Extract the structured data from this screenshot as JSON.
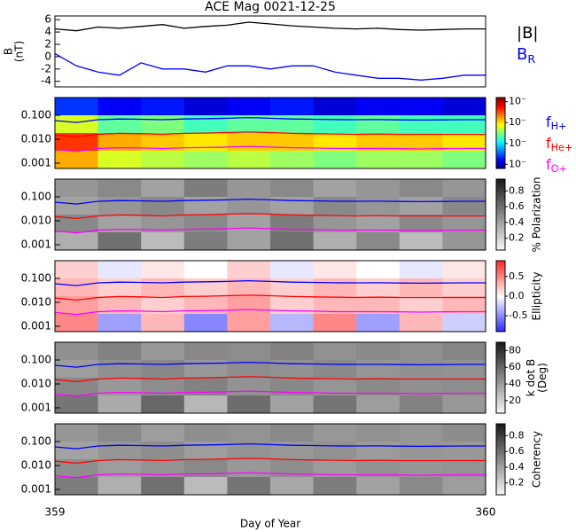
{
  "chart_data": {
    "title": "ACE Mag 0021-12-25",
    "xlabel": "Day of Year",
    "xlim": [
      359,
      360
    ],
    "xticks": [
      359,
      360
    ],
    "x": [
      359.0,
      359.05,
      359.1,
      359.15,
      359.2,
      359.25,
      359.3,
      359.35,
      359.4,
      359.45,
      359.5,
      359.55,
      359.6,
      359.65,
      359.7,
      359.75,
      359.8,
      359.85,
      359.9,
      359.95,
      360.0
    ],
    "gyrofrequencies": {
      "series": [
        {
          "name": "f",
          "subscript": "H+",
          "color": "#0000ff",
          "values": [
            0.06,
            0.05,
            0.065,
            0.07,
            0.068,
            0.065,
            0.07,
            0.072,
            0.075,
            0.08,
            0.075,
            0.07,
            0.068,
            0.066,
            0.065,
            0.066,
            0.064,
            0.063,
            0.064,
            0.065,
            0.065
          ]
        },
        {
          "name": "f",
          "subscript": "He+",
          "color": "#ff0000",
          "values": [
            0.015,
            0.0125,
            0.016,
            0.0175,
            0.017,
            0.016,
            0.0175,
            0.018,
            0.019,
            0.02,
            0.019,
            0.0175,
            0.017,
            0.0165,
            0.016,
            0.0165,
            0.016,
            0.016,
            0.016,
            0.016,
            0.016
          ]
        },
        {
          "name": "f",
          "subscript": "O+",
          "color": "#ff00ff",
          "values": [
            0.0038,
            0.0031,
            0.0041,
            0.0044,
            0.0043,
            0.0041,
            0.0044,
            0.0045,
            0.0047,
            0.005,
            0.0047,
            0.0044,
            0.0043,
            0.0041,
            0.0041,
            0.0041,
            0.004,
            0.0039,
            0.004,
            0.0041,
            0.0041
          ]
        }
      ]
    },
    "panels": [
      {
        "type": "line",
        "ylabel": [
          "B",
          "(nT)"
        ],
        "ylim": [
          -4.9,
          6.6
        ],
        "yticks": [
          6,
          4,
          2,
          0,
          -2,
          -4
        ],
        "series": [
          {
            "name": "|B|",
            "color": "#000000",
            "values": [
              4.5,
              4.2,
              4.8,
              4.6,
              4.9,
              5.2,
              4.6,
              4.9,
              5.1,
              5.6,
              5.3,
              5.0,
              4.8,
              4.6,
              4.5,
              4.6,
              4.4,
              4.3,
              4.4,
              4.5,
              4.5
            ]
          },
          {
            "name": "B",
            "subscript": "R",
            "color": "#0000ff",
            "values": [
              0.5,
              -1.5,
              -2.5,
              -3.0,
              -1.0,
              -2.0,
              -2.0,
              -2.5,
              -1.5,
              -1.5,
              -2.0,
              -1.5,
              -1.5,
              -2.5,
              -3.0,
              -3.5,
              -3.5,
              -3.8,
              -3.5,
              -3.0,
              -3.0
            ]
          }
        ]
      },
      {
        "type": "spectrogram",
        "colormap": "jet",
        "ylim": [
          0.0006,
          0.55
        ],
        "yticks": [
          {
            "value": 0.1,
            "label": "0.100"
          },
          {
            "value": 0.01,
            "label": "0.010"
          },
          {
            "value": 0.001,
            "label": "0.001"
          }
        ],
        "zlim": [
          -4.2,
          -0.8
        ],
        "zticks": [
          {
            "value": -1,
            "label": "10⁻"
          },
          {
            "value": -2,
            "label": "10⁻"
          },
          {
            "value": -3,
            "label": "10⁻"
          },
          {
            "value": -4,
            "label": "10⁻"
          }
        ],
        "z": [
          [
            -3.6,
            -3.8,
            -3.7,
            -3.9,
            -3.8,
            -3.7,
            -3.9,
            -3.8,
            -3.8,
            -3.9
          ],
          [
            -2.2,
            -2.6,
            -2.5,
            -2.7,
            -2.6,
            -2.6,
            -2.7,
            -2.6,
            -2.7,
            -2.7
          ],
          [
            -1.4,
            -1.8,
            -1.9,
            -2.0,
            -1.9,
            -1.9,
            -2.0,
            -1.9,
            -1.9,
            -2.0
          ],
          [
            -1.8,
            -2.2,
            -2.3,
            -2.4,
            -2.3,
            -2.4,
            -2.5,
            -2.4,
            -2.4,
            -2.5
          ]
        ]
      },
      {
        "type": "spectrogram",
        "colormap": "gray",
        "ylim": [
          0.0006,
          0.55
        ],
        "yticks": [
          {
            "value": 0.1,
            "label": "0.100"
          },
          {
            "value": 0.01,
            "label": "0.010"
          },
          {
            "value": 0.001,
            "label": "0.001"
          }
        ],
        "zlim": [
          0.05,
          0.95
        ],
        "zticks": [
          0.8,
          0.6,
          0.4,
          0.2
        ],
        "zlabel": [
          "% Polarization"
        ],
        "z": [
          [
            0.45,
            0.5,
            0.4,
            0.55,
            0.45,
            0.5,
            0.4,
            0.45,
            0.5,
            0.45
          ],
          [
            0.4,
            0.45,
            0.5,
            0.4,
            0.45,
            0.4,
            0.5,
            0.45,
            0.4,
            0.5
          ],
          [
            0.5,
            0.4,
            0.45,
            0.5,
            0.4,
            0.55,
            0.45,
            0.4,
            0.5,
            0.45
          ],
          [
            0.35,
            0.6,
            0.3,
            0.55,
            0.4,
            0.6,
            0.35,
            0.5,
            0.3,
            0.45
          ]
        ]
      },
      {
        "type": "spectrogram",
        "colormap": "bwr",
        "ylim": [
          0.0006,
          0.55
        ],
        "yticks": [
          {
            "value": 0.1,
            "label": "0.100"
          },
          {
            "value": 0.01,
            "label": "0.010"
          },
          {
            "value": 0.001,
            "label": "0.001"
          }
        ],
        "zlim": [
          -0.9,
          0.9
        ],
        "zticks": [
          0.5,
          {
            "value": 0,
            "label": "0.0"
          },
          -0.5
        ],
        "zlabel": [
          "Ellipticity"
        ],
        "z": [
          [
            0.2,
            -0.1,
            0.1,
            0.0,
            0.2,
            -0.1,
            0.1,
            0.0,
            -0.1,
            0.1
          ],
          [
            0.3,
            0.2,
            0.3,
            0.2,
            0.3,
            0.2,
            0.3,
            0.2,
            0.3,
            0.2
          ],
          [
            0.4,
            0.3,
            0.2,
            0.3,
            0.4,
            0.2,
            0.3,
            0.3,
            0.2,
            0.3
          ],
          [
            0.5,
            -0.4,
            0.3,
            -0.5,
            0.4,
            -0.3,
            0.5,
            -0.4,
            0.3,
            -0.2
          ]
        ]
      },
      {
        "type": "spectrogram",
        "colormap": "gray",
        "ylim": [
          0.0006,
          0.55
        ],
        "yticks": [
          {
            "value": 0.1,
            "label": "0.100"
          },
          {
            "value": 0.01,
            "label": "0.010"
          },
          {
            "value": 0.001,
            "label": "0.001"
          }
        ],
        "zlim": [
          5,
          90
        ],
        "zticks": [
          80,
          60,
          40,
          20
        ],
        "zlabel": [
          "k dot B",
          "(Deg)"
        ],
        "z": [
          [
            45,
            50,
            42,
            48,
            46,
            50,
            44,
            47,
            45,
            49
          ],
          [
            40,
            45,
            48,
            42,
            46,
            44,
            47,
            43,
            45,
            44
          ],
          [
            48,
            42,
            46,
            50,
            44,
            48,
            43,
            47,
            45,
            46
          ],
          [
            55,
            35,
            60,
            30,
            58,
            38,
            55,
            40,
            50,
            42
          ]
        ]
      },
      {
        "type": "spectrogram",
        "colormap": "gray",
        "ylim": [
          0.0006,
          0.55
        ],
        "yticks": [
          {
            "value": 0.1,
            "label": "0.100"
          },
          {
            "value": 0.01,
            "label": "0.010"
          },
          {
            "value": 0.001,
            "label": "0.001"
          }
        ],
        "zlim": [
          0.05,
          0.95
        ],
        "zticks": [
          0.8,
          0.6,
          0.4,
          0.2
        ],
        "zlabel": [
          "Coherency"
        ],
        "z": [
          [
            0.45,
            0.5,
            0.42,
            0.48,
            0.46,
            0.5,
            0.44,
            0.47,
            0.45,
            0.49
          ],
          [
            0.4,
            0.45,
            0.48,
            0.42,
            0.46,
            0.44,
            0.47,
            0.43,
            0.45,
            0.44
          ],
          [
            0.48,
            0.42,
            0.46,
            0.5,
            0.44,
            0.48,
            0.43,
            0.47,
            0.45,
            0.46
          ],
          [
            0.55,
            0.35,
            0.6,
            0.3,
            0.58,
            0.38,
            0.55,
            0.4,
            0.5,
            0.42
          ]
        ]
      }
    ]
  }
}
